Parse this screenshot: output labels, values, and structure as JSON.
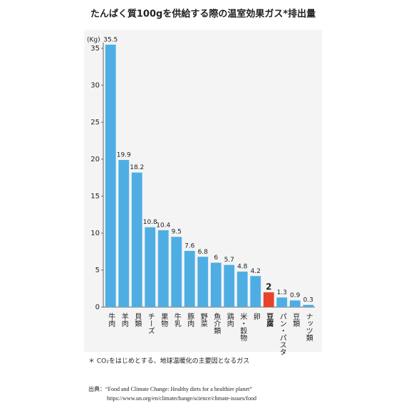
{
  "chart_data": {
    "type": "bar",
    "title": "たんぱく質100gを供給する際の温室効果ガス*排出量",
    "y_label": "(Kg)",
    "categories": [
      "牛肉",
      "羊肉",
      "貝類",
      "チーズ",
      "果物",
      "牛乳",
      "豚肉",
      "野菜",
      "魚介類",
      "鶏肉",
      "米・穀物",
      "卵",
      "豆腐",
      "パン・パスタ",
      "豆類",
      "ナッツ類"
    ],
    "values": [
      35.5,
      19.9,
      18.2,
      10.8,
      10.4,
      9.5,
      7.6,
      6.8,
      6,
      5.7,
      4.8,
      4.2,
      2,
      1.3,
      0.9,
      0.3
    ],
    "colors": [
      "#4eaee3",
      "#4eaee3",
      "#4eaee3",
      "#4eaee3",
      "#4eaee3",
      "#4eaee3",
      "#4eaee3",
      "#4eaee3",
      "#4eaee3",
      "#4eaee3",
      "#4eaee3",
      "#4eaee3",
      "#e8432a",
      "#4eaee3",
      "#4eaee3",
      "#4eaee3"
    ],
    "ylim": [
      0,
      35
    ],
    "yticks": [
      0,
      5,
      10,
      15,
      20,
      25,
      30,
      35
    ],
    "footnote": "＊ CO₂をはじめとする、地球温暖化の主要因となるガス",
    "source": "出典：“Food and Climate Change: Healthy diets for a healthier planet”",
    "source_url": "https://www.un.org/en/climatechange/science/climate-issues/food"
  }
}
